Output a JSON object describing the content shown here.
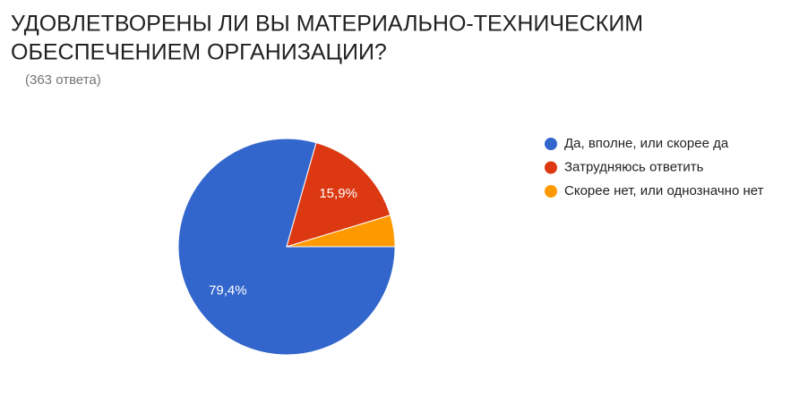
{
  "chart_data": {
    "type": "pie",
    "title": [
      "УДОВЛЕТВОРЕНЫ ЛИ ВЫ МАТЕРИАЛЬНО-ТЕХНИЧЕСКИМ",
      "ОБЕСПЕЧЕНИЕМ ОРГАНИЗАЦИИ?"
    ],
    "subtitle": "(363 ответа)",
    "categories": [
      "Да, вполне, или скорее да",
      "Затрудняюсь ответить",
      "Скорее нет, или однозначно нет"
    ],
    "values": [
      79.4,
      15.9,
      4.7
    ],
    "value_labels": [
      "79,4%",
      "15,9%",
      null
    ],
    "colors": [
      "#3366cc",
      "#dc3912",
      "#ff9900"
    ],
    "legend": "right"
  }
}
